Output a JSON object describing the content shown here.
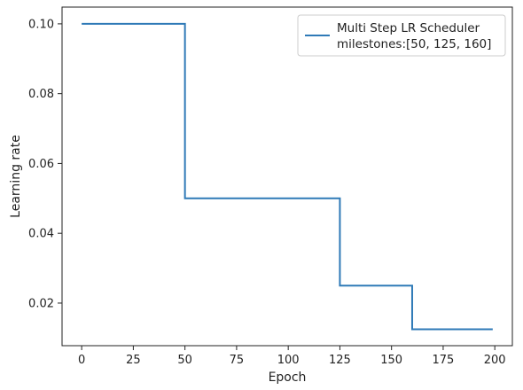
{
  "chart_data": {
    "type": "line",
    "title": "",
    "xlabel": "Epoch",
    "ylabel": "Learning rate",
    "xlim": [
      -9.5,
      208.5
    ],
    "ylim": [
      0.0078,
      0.1048
    ],
    "xticks": [
      0,
      25,
      50,
      75,
      100,
      125,
      150,
      175,
      200
    ],
    "yticks": [
      0.02,
      0.04,
      0.06,
      0.08,
      0.1
    ],
    "ytick_labels": [
      "0.02",
      "0.04",
      "0.06",
      "0.08",
      "0.10"
    ],
    "grid": false,
    "legend": {
      "placement": "upper-right",
      "lines": [
        "Multi Step LR Scheduler",
        "milestones:[50, 125, 160]"
      ]
    },
    "series": [
      {
        "color": "#2f7ab7",
        "drawstyle": "steps-post",
        "x": [
          0,
          50,
          125,
          160,
          199
        ],
        "y": [
          0.1,
          0.05,
          0.025,
          0.0125,
          0.0125
        ]
      }
    ]
  }
}
